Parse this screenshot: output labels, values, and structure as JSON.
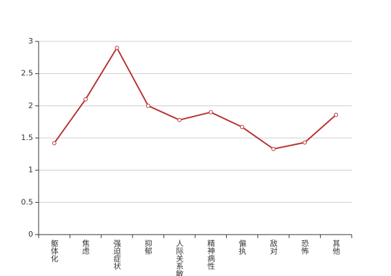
{
  "chart_data": {
    "type": "line",
    "categories": [
      "躯体化",
      "焦虑",
      "强迫症状",
      "抑郁",
      "人际关系敏感",
      "精神病性",
      "偏执",
      "敌对",
      "恐怖",
      "其他"
    ],
    "values": [
      1.42,
      2.1,
      2.9,
      2.0,
      1.78,
      1.9,
      1.67,
      1.33,
      1.43,
      1.86
    ],
    "color": "#b83232",
    "ylim": [
      0,
      3
    ],
    "yticks": [
      0,
      0.5,
      1,
      1.5,
      2,
      2.5,
      3
    ],
    "grid": true
  }
}
